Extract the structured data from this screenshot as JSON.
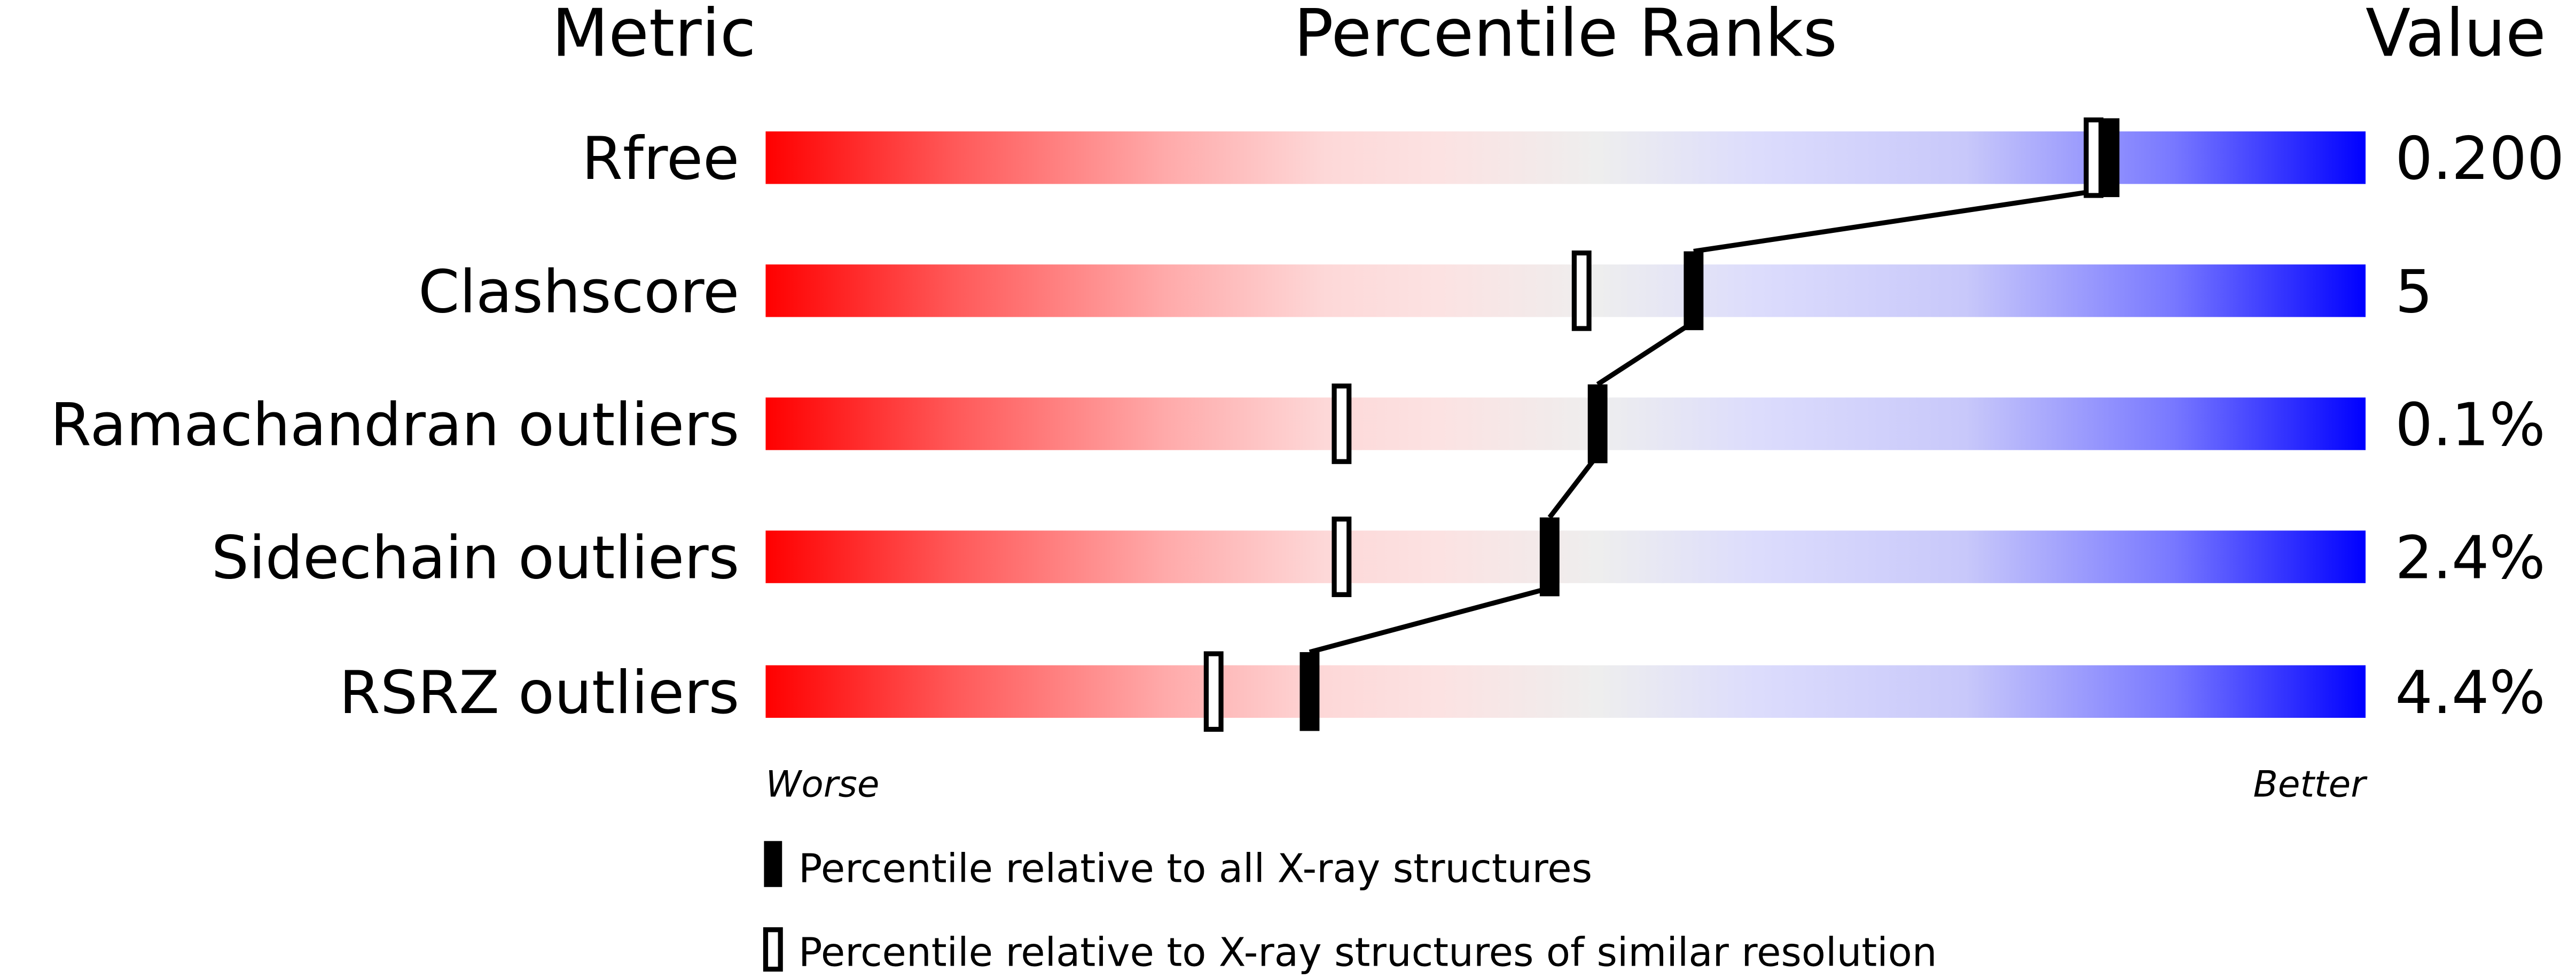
{
  "chart_data": {
    "type": "percentile-slider",
    "headers": {
      "metric": "Metric",
      "ranks": "Percentile Ranks",
      "value": "Value"
    },
    "xlim": [
      0,
      100
    ],
    "worse_label": "Worse",
    "better_label": "Better",
    "colors": {
      "worse": "#ff0000",
      "middle": "#eeeeee",
      "better": "#0000ff"
    },
    "metrics": [
      {
        "name": "Rfree",
        "value": "0.200",
        "percentile_all": 84,
        "percentile_similar": 83
      },
      {
        "name": "Clashscore",
        "value": "5",
        "percentile_all": 58,
        "percentile_similar": 51
      },
      {
        "name": "Ramachandran outliers",
        "value": "0.1%",
        "percentile_all": 52,
        "percentile_similar": 36
      },
      {
        "name": "Sidechain outliers",
        "value": "2.4%",
        "percentile_all": 49,
        "percentile_similar": 36
      },
      {
        "name": "RSRZ outliers",
        "value": "4.4%",
        "percentile_all": 34,
        "percentile_similar": 28
      }
    ],
    "legend": {
      "all": "Percentile relative to all X-ray structures",
      "similar": "Percentile relative to X-ray structures of similar resolution"
    }
  }
}
